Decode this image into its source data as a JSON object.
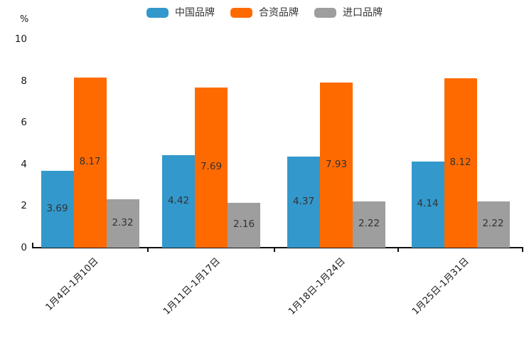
{
  "chart_data": {
    "type": "bar",
    "title": "",
    "unit_label": "%",
    "categories": [
      "1月4日-1月10日",
      "1月11日-1月17日",
      "1月18日-1月24日",
      "1月25日-1月31日"
    ],
    "series": [
      {
        "name": "中国品牌",
        "color": "#3398CB",
        "values": [
          3.69,
          4.42,
          4.37,
          4.14
        ]
      },
      {
        "name": "合资品牌",
        "color": "#FF6A00",
        "values": [
          8.17,
          7.69,
          7.93,
          8.12
        ]
      },
      {
        "name": "进口品牌",
        "color": "#9E9E9E",
        "values": [
          2.32,
          2.16,
          2.22,
          2.22
        ]
      }
    ],
    "y_axis": {
      "min": 0,
      "max": 10,
      "ticks": [
        0,
        2,
        4,
        6,
        8,
        10
      ]
    },
    "legend_position": "top-center",
    "grid": false,
    "value_labels_shown": true,
    "value_label_color": "#333333",
    "axis_color": "#111111"
  }
}
